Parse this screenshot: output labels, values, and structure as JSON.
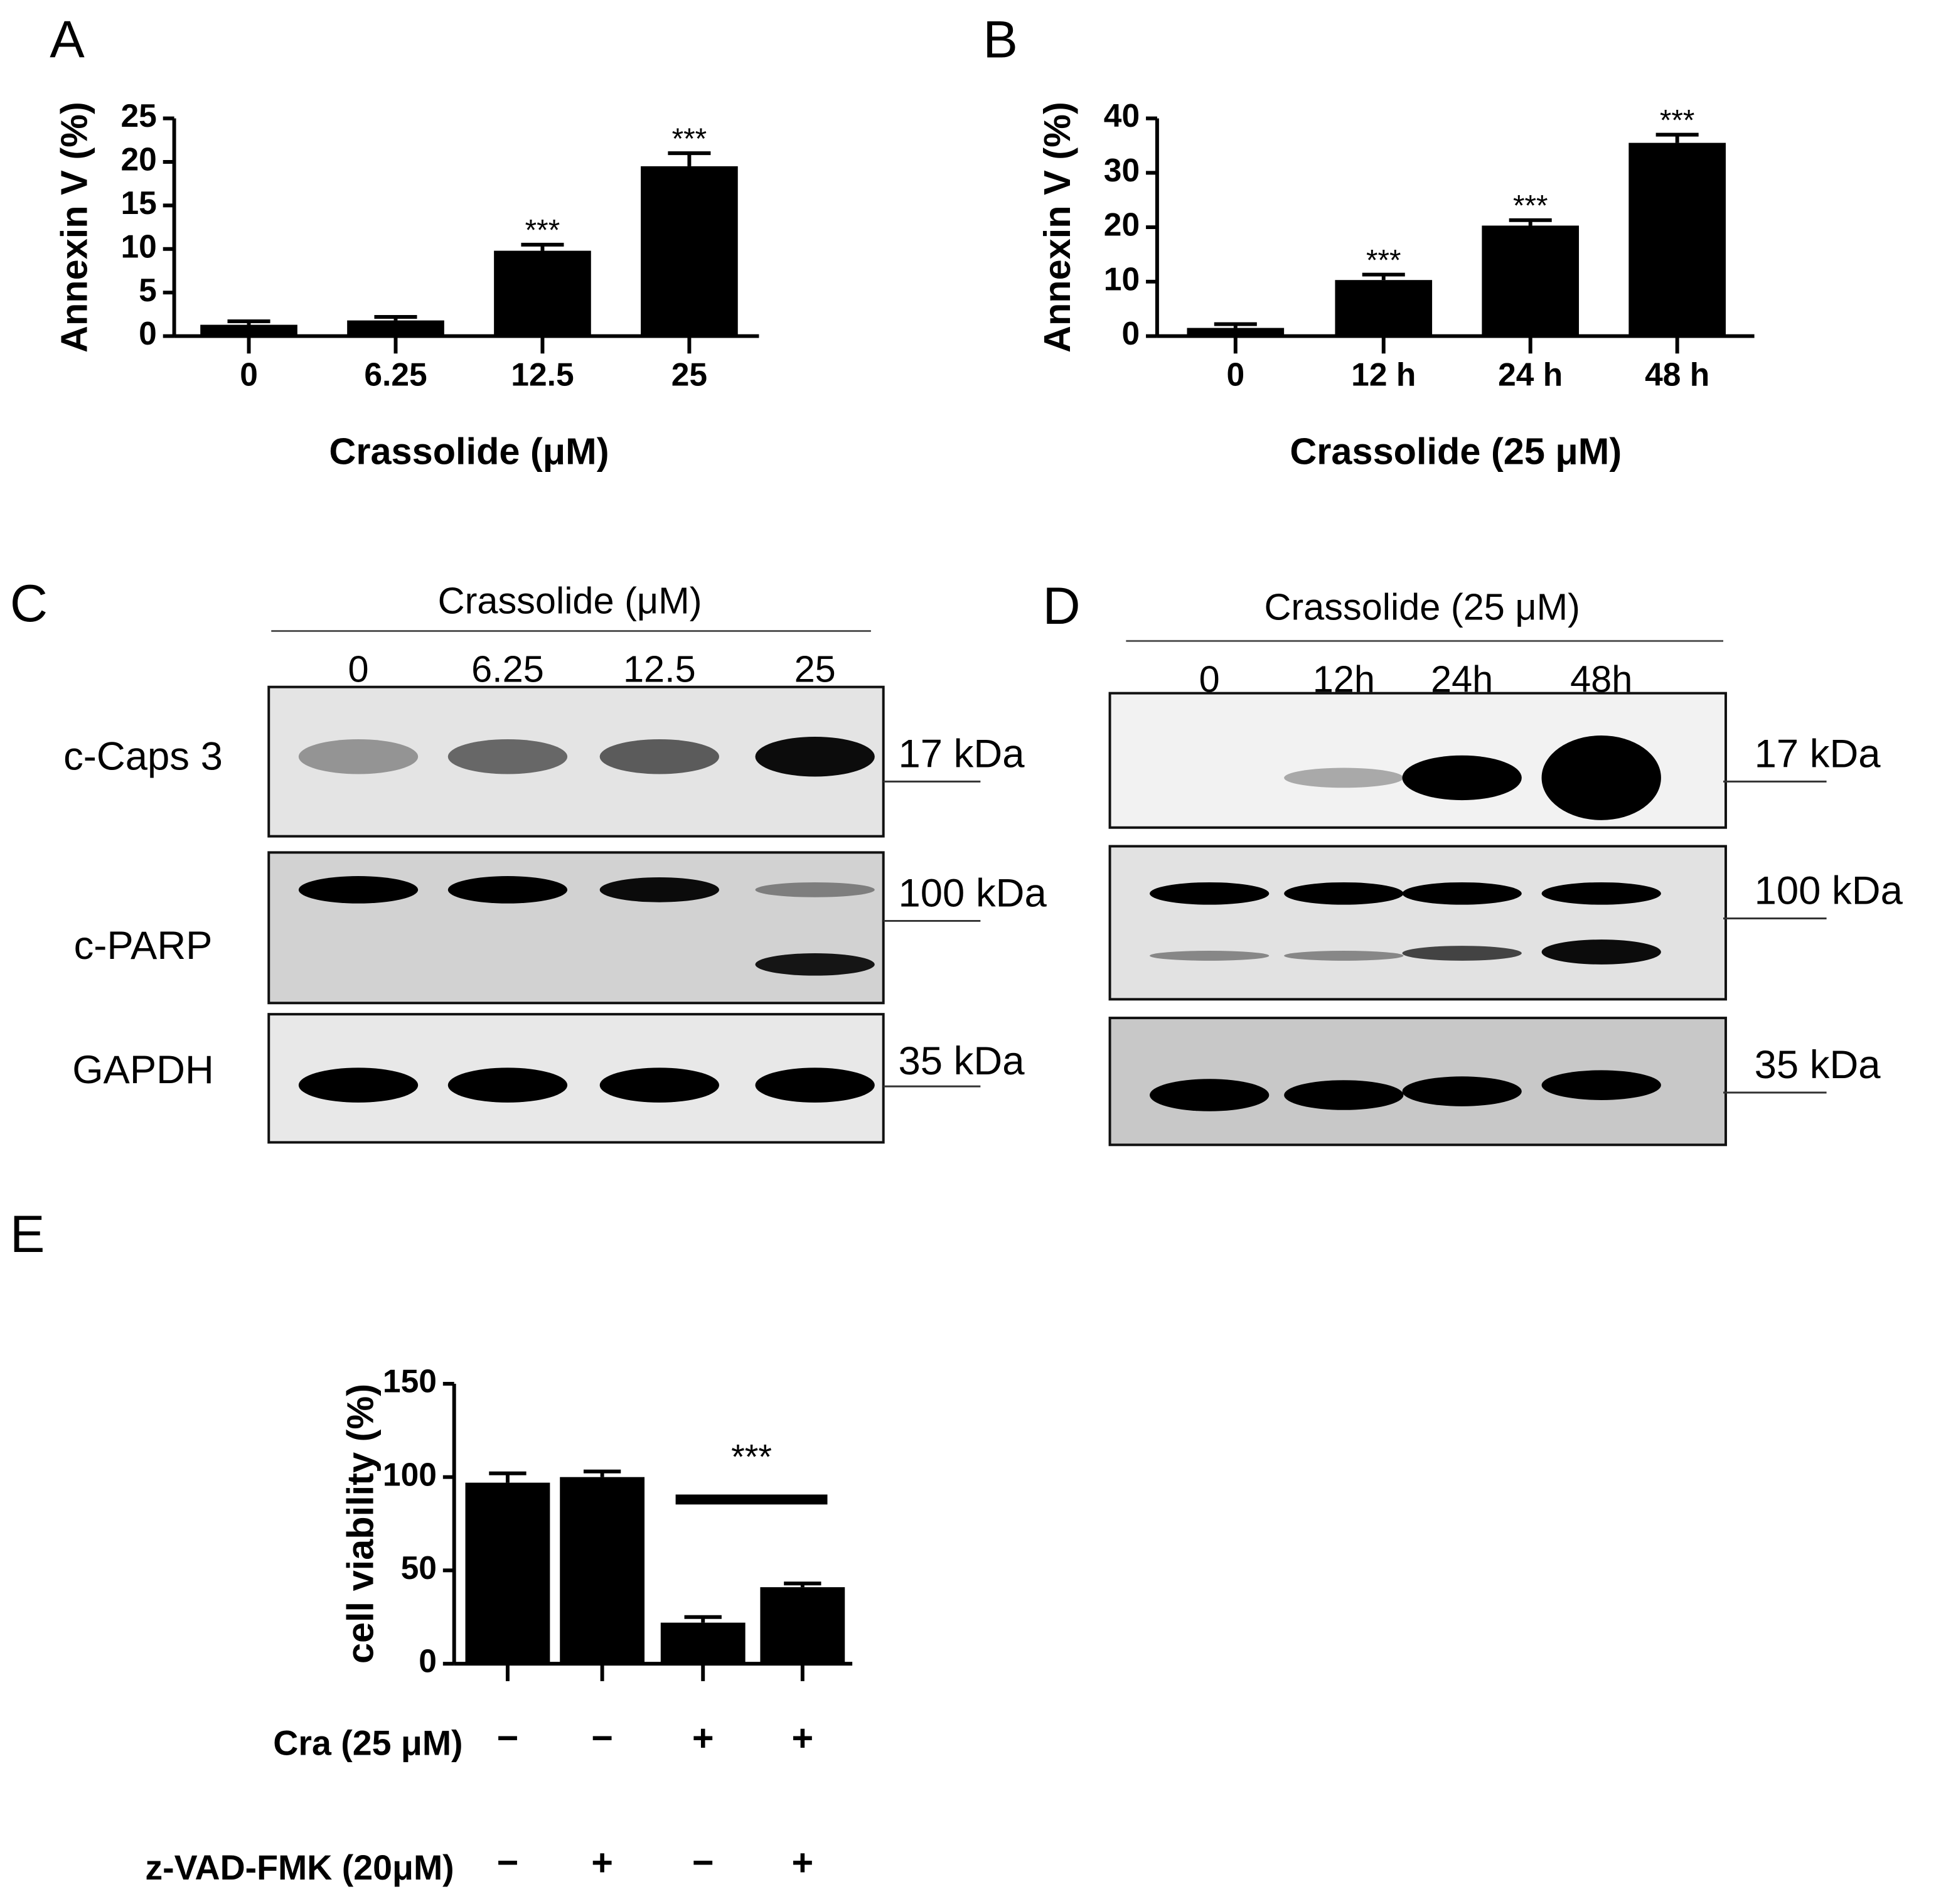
{
  "chart_data": [
    {
      "type": "bar",
      "panel": "A",
      "ylabel": "Annexin V (%)",
      "xlabel": "Crassolide (μM)",
      "categories": [
        "0",
        "6.25",
        "12.5",
        "25"
      ],
      "values": [
        1.3,
        1.8,
        9.8,
        19.5
      ],
      "errors": [
        0.4,
        0.4,
        0.7,
        1.5
      ],
      "annotations": [
        null,
        null,
        "***",
        "***"
      ],
      "color": "#000000",
      "ylim": [
        0,
        25
      ],
      "yticks": [
        0,
        5,
        10,
        15,
        20,
        25
      ]
    },
    {
      "type": "bar",
      "panel": "B",
      "ylabel": "Annexin V (%)",
      "xlabel": "Crassolide (25 μM)",
      "categories": [
        "0",
        "12 h",
        "24 h",
        "48 h"
      ],
      "values": [
        1.5,
        10.3,
        20.3,
        35.5
      ],
      "errors": [
        0.7,
        1.0,
        1.0,
        1.5
      ],
      "annotations": [
        null,
        "***",
        "***",
        "***"
      ],
      "color": "#000000",
      "ylim": [
        0,
        40
      ],
      "yticks": [
        0,
        10,
        20,
        30,
        40
      ]
    },
    {
      "type": "bar",
      "panel": "E",
      "ylabel": "cell viability (%)",
      "categories": [
        null,
        null,
        null,
        null
      ],
      "values": [
        97,
        100,
        22,
        41
      ],
      "errors": [
        5,
        3,
        3,
        2
      ],
      "bracket_label": "***",
      "color": "#000000",
      "treatments": [
        {
          "name": "Cra (25 μM)",
          "signs": [
            "−",
            "−",
            "+",
            "+"
          ]
        },
        {
          "name": "z-VAD-FMK (20μM)",
          "signs": [
            "−",
            "+",
            "−",
            "+"
          ]
        }
      ],
      "ylim": [
        0,
        150
      ],
      "yticks": [
        0,
        50,
        100,
        150
      ]
    }
  ],
  "blots": [
    {
      "panel": "C",
      "title": "Crassolide (μM)",
      "lanes": [
        "0",
        "6.25",
        "12.5",
        "25"
      ],
      "rows": [
        {
          "label": "c-Caps 3",
          "marker": "17 kDa"
        },
        {
          "label": "c-PARP",
          "marker": "100 kDa"
        },
        {
          "label": "GAPDH",
          "marker": "35 kDa"
        }
      ]
    },
    {
      "panel": "D",
      "title": "Crassolide (25 μM)",
      "lanes": [
        "0",
        "12h",
        "24h",
        "48h"
      ],
      "rows": [
        {
          "marker": "17 kDa"
        },
        {
          "marker": "100 kDa"
        },
        {
          "marker": "35 kDa"
        }
      ]
    }
  ]
}
